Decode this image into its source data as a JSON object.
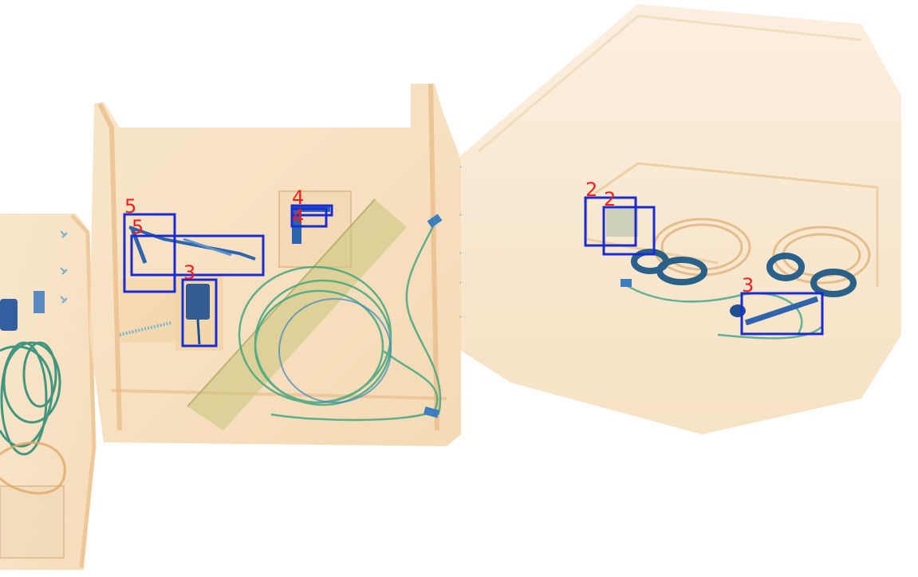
{
  "image": {
    "kind": "x-ray baggage scan with detection boxes",
    "background_color": "#ffffff",
    "bag_color": "#f6dcb7",
    "cable_color": "#4fa88b",
    "object_color": "#1d4f9a",
    "box_color": "#1a2bd6",
    "label_color": "#ff1a1a"
  },
  "detections": [
    {
      "label": "5"
    },
    {
      "label": "5"
    },
    {
      "label": "3"
    },
    {
      "label": "4"
    },
    {
      "label": "4"
    },
    {
      "label": "2"
    },
    {
      "label": "2"
    },
    {
      "label": "3"
    }
  ]
}
